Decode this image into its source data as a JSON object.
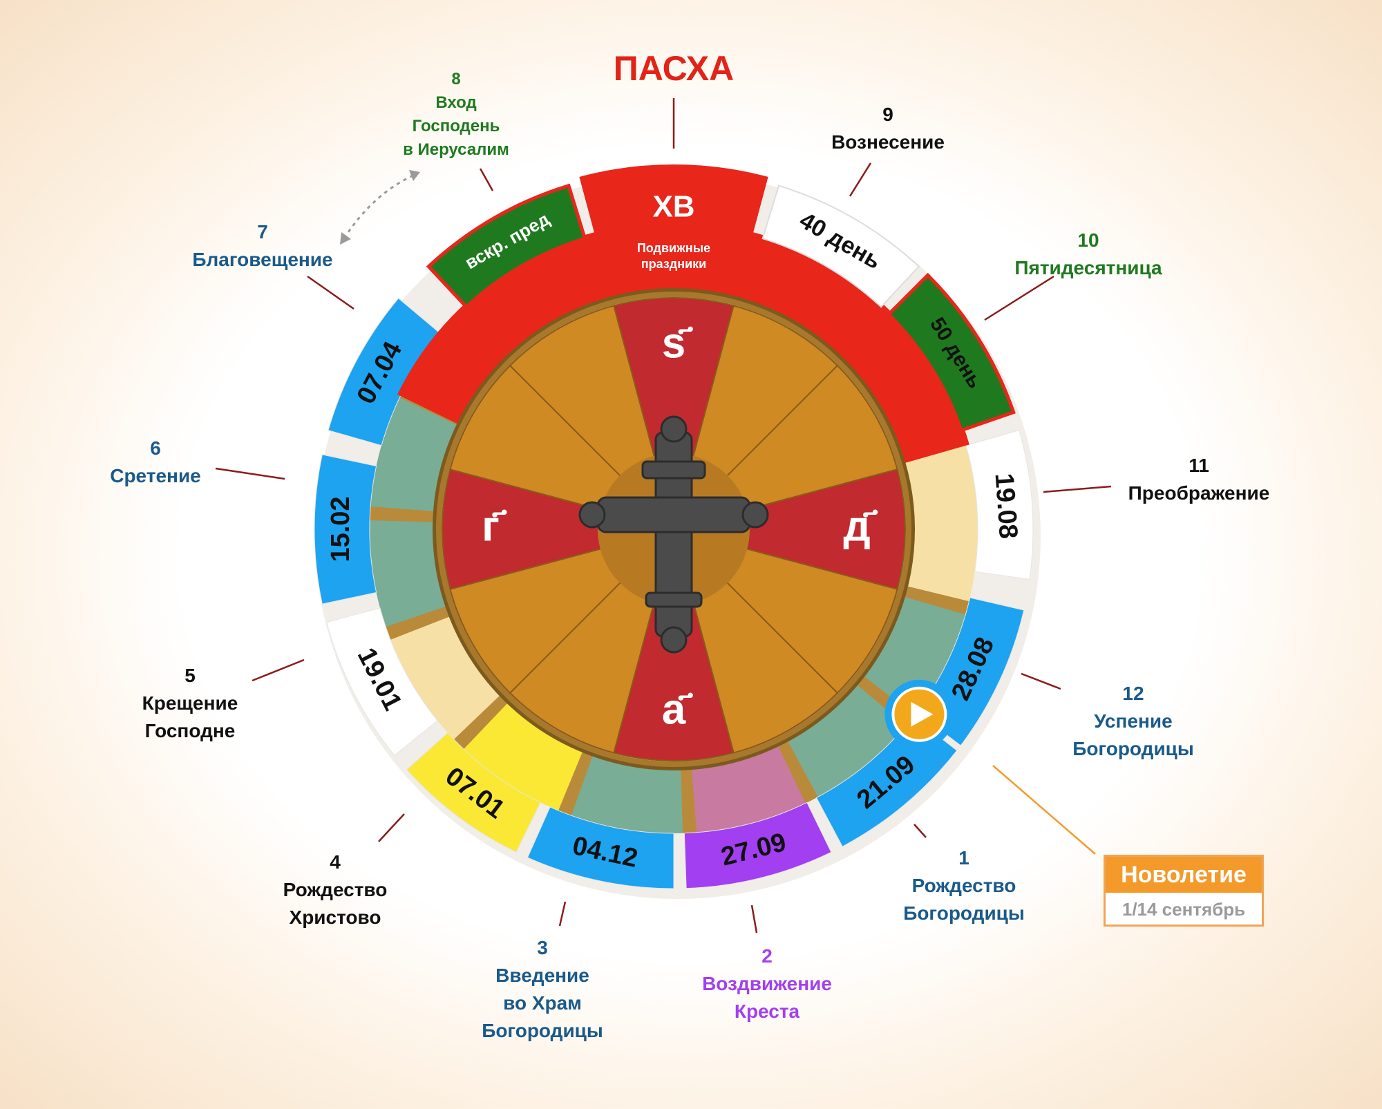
{
  "colors": {
    "pascha_red": "#e8261a",
    "blue": "#1da3f0",
    "green_dark": "#1f7a1f",
    "teal": "#79ad96",
    "cream": "#f7e0a5",
    "yellow": "#fbe834",
    "purple": "#a23ff0",
    "pink": "#c87aa0",
    "wheel_orange": "#cf8a23",
    "wheel_red": "#c12a2f",
    "label_blue": "#1a5a8a",
    "label_black": "#111111",
    "label_green": "#1f7a1f",
    "label_purple": "#a23ff0",
    "orange": "#f39a2b"
  },
  "pascha": {
    "title": "ПАСХА",
    "band_title": "ХВ",
    "band_subtitle_line1": "Подвижные",
    "band_subtitle_line2": "праздники",
    "tabs": {
      "sunday_before": "вскр. пред",
      "day40": "40 день",
      "day50": "50 день"
    }
  },
  "dates": {
    "d1": "21.09",
    "d2": "27.09",
    "d3": "04.12",
    "d4": "07.01",
    "d5": "19.01",
    "d6": "15.02",
    "d7": "07.04",
    "d11": "19.08",
    "d12": "28.08"
  },
  "feasts": [
    {
      "num": "1",
      "name": [
        "Рождество",
        "Богородицы"
      ]
    },
    {
      "num": "2",
      "name": [
        "Воздвижение",
        "Креста"
      ]
    },
    {
      "num": "3",
      "name": [
        "Введение",
        "во Храм",
        "Богородицы"
      ]
    },
    {
      "num": "4",
      "name": [
        "Рождество",
        "Христово"
      ]
    },
    {
      "num": "5",
      "name": [
        "Крещение",
        "Господне"
      ]
    },
    {
      "num": "6",
      "name": [
        "Сретение"
      ]
    },
    {
      "num": "7",
      "name": [
        "Благовещение"
      ]
    },
    {
      "num": "8",
      "name": [
        "Вход",
        "Господень",
        "в Иерусалим"
      ]
    },
    {
      "num": "9",
      "name": [
        "Вознесение"
      ]
    },
    {
      "num": "10",
      "name": [
        "Пятидесятница"
      ]
    },
    {
      "num": "11",
      "name": [
        "Преображение"
      ]
    },
    {
      "num": "12",
      "name": [
        "Успение",
        "Богородицы"
      ]
    }
  ],
  "wheel_letters": {
    "top": "ѕ҃",
    "right": "д҃",
    "bottom": "а҃",
    "left": "г҃"
  },
  "new_year": {
    "title": "Новолетие",
    "subtitle": "1/14 сентябрь"
  },
  "icons": {
    "center": "orthodox-cross-icon",
    "start_marker": "play-icon",
    "swap_arrow": "double-arrow-icon"
  }
}
